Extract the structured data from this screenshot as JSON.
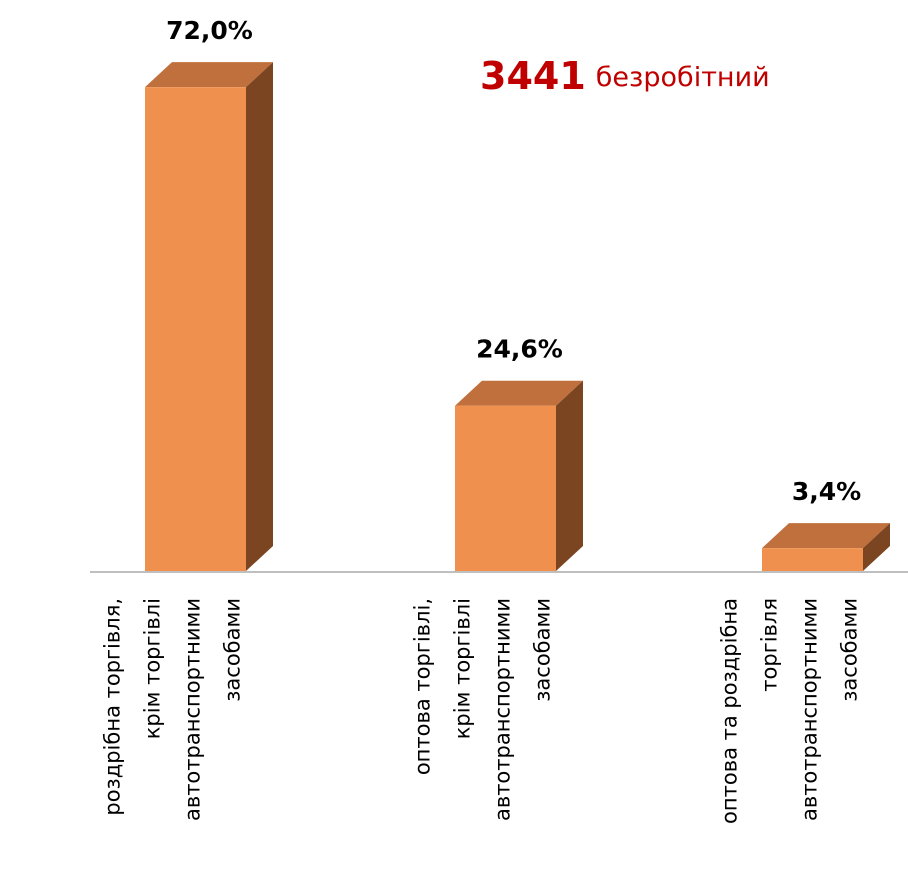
{
  "chart_data": {
    "type": "bar3d",
    "categories": [
      [
        "роздрібна торгівля,",
        "крім торгівлі",
        "автотранспортними",
        "засобами"
      ],
      [
        "оптова торгівлі,",
        "крім торгівлі",
        "автотранспортними",
        "засобами"
      ],
      [
        "оптова та роздрібна",
        "торгівля",
        "автотранспортними",
        "засобами"
      ]
    ],
    "values": [
      72.0,
      24.6,
      3.4
    ],
    "value_labels": [
      "72,0%",
      "24,6%",
      "3,4%"
    ],
    "color": "#f0904e",
    "top_color": "#c0703c",
    "side_color": "#7a4520",
    "annotation": {
      "number": "3441",
      "text": "безробітний",
      "color": "#c00000"
    }
  }
}
